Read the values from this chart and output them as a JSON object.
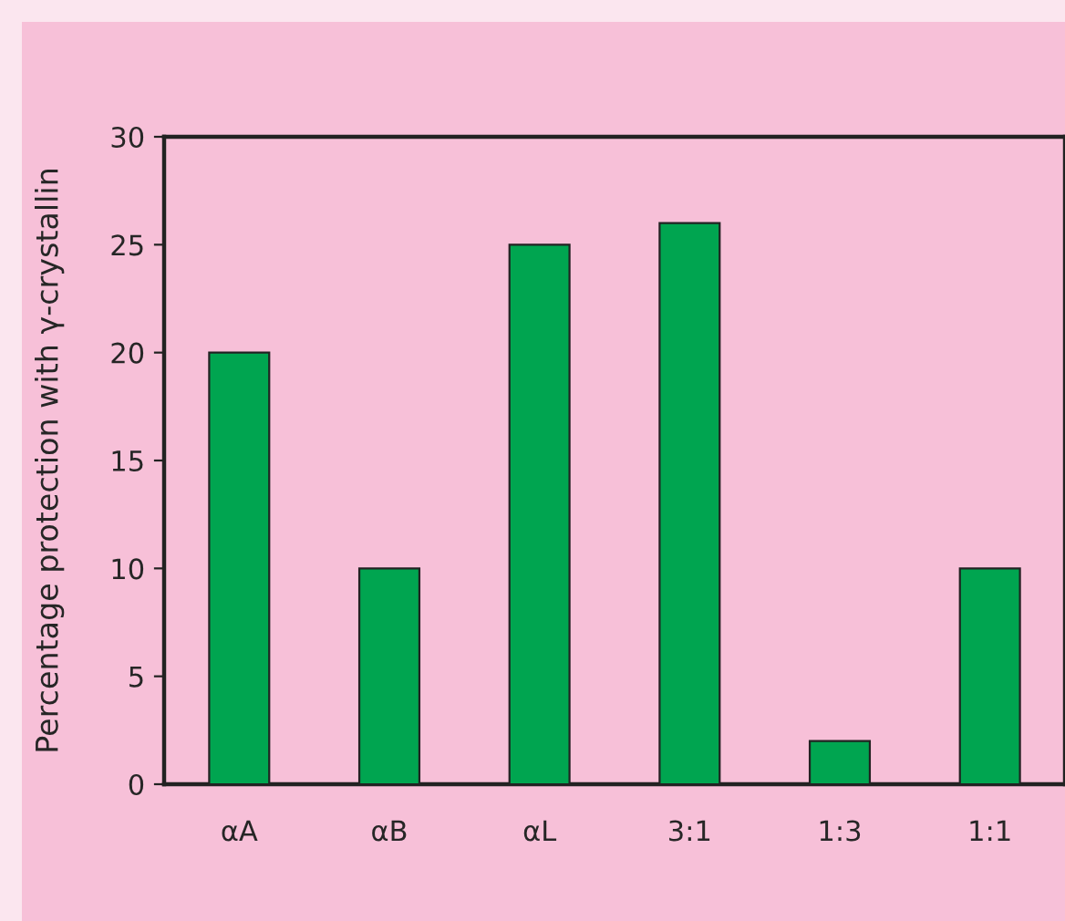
{
  "chart_data": {
    "type": "bar",
    "ylabel": "Percentage protection with γ-crystallin",
    "categories": [
      "αA",
      "αB",
      "αL",
      "3:1",
      "1:3",
      "1:1"
    ],
    "values": [
      20,
      10,
      25,
      26,
      2,
      10
    ],
    "color": "#00a550",
    "ylim": [
      0,
      30
    ],
    "yticks": [
      0,
      5,
      10,
      15,
      20,
      25,
      30
    ],
    "grid": false
  }
}
